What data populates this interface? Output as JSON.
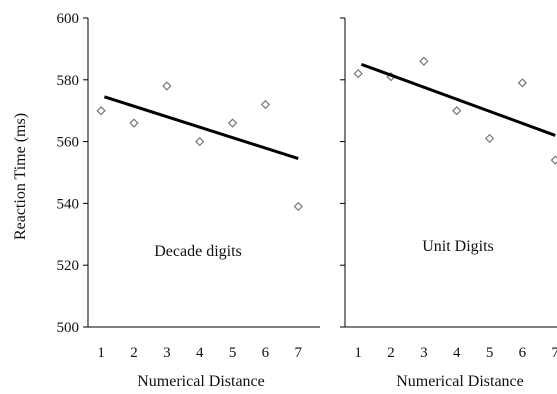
{
  "chart_data": [
    {
      "type": "scatter",
      "panel": "left",
      "annotation": "Decade digits",
      "xlabel": "Numerical Distance",
      "ylabel": "Reaction Time (ms)",
      "x_ticks": [
        "1",
        "2",
        "3",
        "4",
        "5",
        "6",
        "7"
      ],
      "y_ticks": [
        "500",
        "520",
        "540",
        "560",
        "580",
        "600"
      ],
      "xlim": [
        0.6,
        7.6
      ],
      "ylim": [
        500,
        600
      ],
      "points": [
        {
          "x": 1,
          "y": 570
        },
        {
          "x": 2,
          "y": 566
        },
        {
          "x": 3,
          "y": 578
        },
        {
          "x": 4,
          "y": 560
        },
        {
          "x": 5,
          "y": 566
        },
        {
          "x": 6,
          "y": 572
        },
        {
          "x": 7,
          "y": 539
        }
      ],
      "trendline": {
        "x": [
          1.1,
          7.0
        ],
        "y": [
          574.5,
          554.5
        ]
      },
      "colors": {
        "points": "#777777",
        "trendline": "#000000"
      }
    },
    {
      "type": "scatter",
      "panel": "right",
      "annotation": "Unit Digits",
      "xlabel": "Numerical Distance",
      "ylabel": "",
      "x_ticks": [
        "1",
        "2",
        "3",
        "4",
        "5",
        "6",
        "7"
      ],
      "ylim": [
        500,
        600
      ],
      "xlim": [
        0.6,
        7.6
      ],
      "points": [
        {
          "x": 1,
          "y": 582
        },
        {
          "x": 2,
          "y": 581
        },
        {
          "x": 3,
          "y": 586
        },
        {
          "x": 4,
          "y": 570
        },
        {
          "x": 5,
          "y": 561
        },
        {
          "x": 6,
          "y": 579
        },
        {
          "x": 7,
          "y": 554
        }
      ],
      "trendline": {
        "x": [
          1.1,
          7.0
        ],
        "y": [
          585,
          562
        ]
      },
      "colors": {
        "points": "#777777",
        "trendline": "#000000"
      }
    }
  ]
}
